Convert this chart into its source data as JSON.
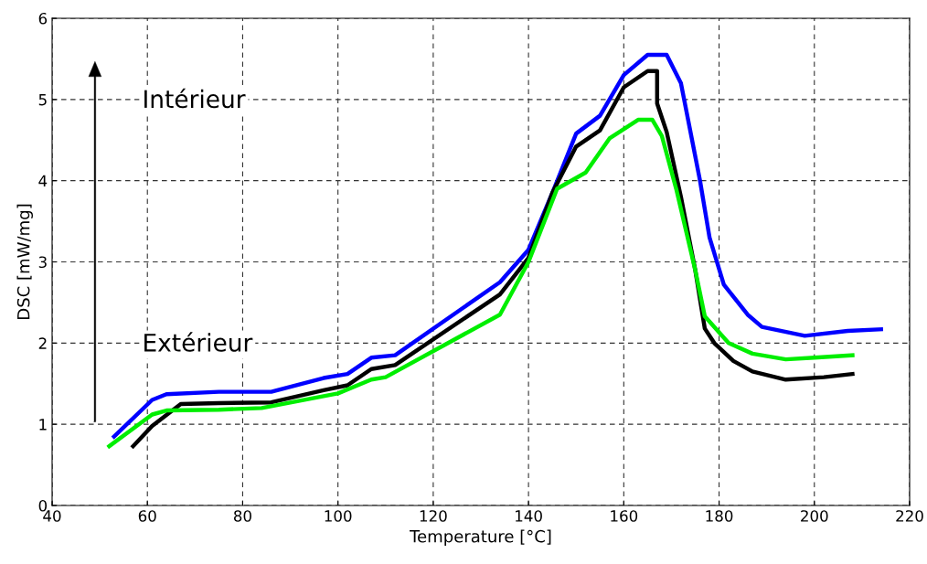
{
  "chart_data": {
    "type": "line",
    "xlabel": "Temperature [°C]",
    "ylabel": "DSC [mW/mg]",
    "xlim": [
      40,
      220
    ],
    "xticks": [
      40,
      60,
      80,
      100,
      120,
      140,
      160,
      180,
      200,
      220
    ],
    "ylim": [
      0,
      6
    ],
    "yticks": [
      0,
      1,
      2,
      3,
      4,
      5,
      6
    ],
    "grid": true,
    "line_style": "solid",
    "marker": "none",
    "annotations": [
      "Intérieur",
      "Extérieur"
    ],
    "series": [
      {
        "color": "#0000ff",
        "x": [
          53,
          61,
          64,
          75,
          86,
          97,
          102,
          107,
          112,
          134,
          140,
          145,
          150,
          155,
          160,
          165,
          169,
          172,
          176,
          178,
          181,
          186,
          189,
          198,
          207,
          214
        ],
        "values": [
          0.85,
          1.3,
          1.37,
          1.4,
          1.4,
          1.57,
          1.62,
          1.82,
          1.85,
          2.75,
          3.15,
          3.85,
          4.58,
          4.8,
          5.3,
          5.55,
          5.55,
          5.2,
          4.0,
          3.3,
          2.72,
          2.35,
          2.2,
          2.09,
          2.15,
          2.17
        ]
      },
      {
        "color": "#000000",
        "x": [
          57,
          61,
          67,
          75,
          86,
          97,
          102,
          107,
          112,
          134,
          140,
          145,
          150,
          155,
          160,
          165,
          167,
          167,
          169,
          172,
          175,
          177,
          179,
          183,
          187,
          194,
          202,
          208
        ],
        "values": [
          0.73,
          0.98,
          1.25,
          1.26,
          1.27,
          1.42,
          1.48,
          1.68,
          1.73,
          2.6,
          3.05,
          3.85,
          4.42,
          4.62,
          5.15,
          5.35,
          5.35,
          4.95,
          4.6,
          3.8,
          2.9,
          2.18,
          2.0,
          1.78,
          1.65,
          1.55,
          1.58,
          1.62
        ]
      },
      {
        "color": "#00ee00",
        "x": [
          52,
          61,
          64,
          75,
          84,
          100,
          107,
          110,
          134,
          140,
          146,
          152,
          157,
          163,
          166,
          168,
          171,
          175,
          177,
          182,
          187,
          194,
          200,
          208
        ],
        "values": [
          0.73,
          1.12,
          1.17,
          1.18,
          1.2,
          1.38,
          1.55,
          1.58,
          2.35,
          3.0,
          3.9,
          4.1,
          4.52,
          4.75,
          4.75,
          4.55,
          3.9,
          2.9,
          2.33,
          2.0,
          1.87,
          1.8,
          1.82,
          1.85
        ]
      }
    ]
  }
}
